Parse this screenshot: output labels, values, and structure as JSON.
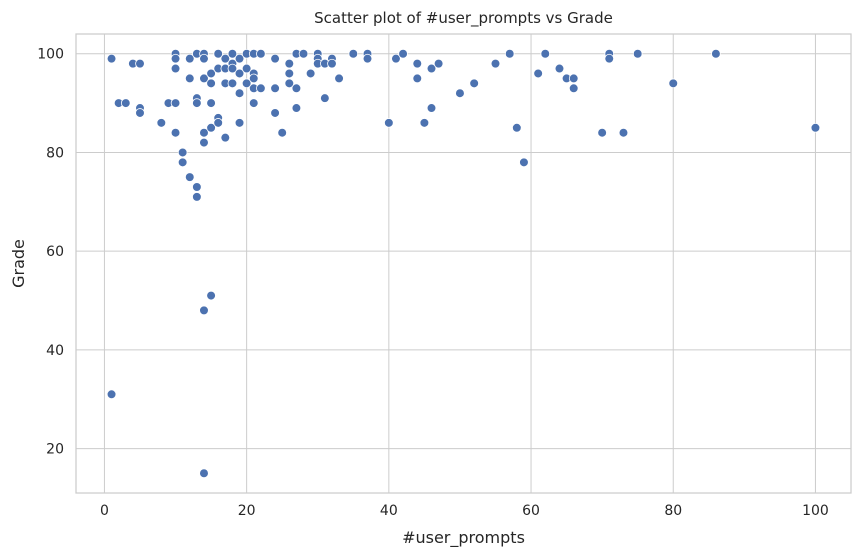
{
  "chart_data": {
    "type": "scatter",
    "title": "Scatter plot of #user_prompts vs Grade",
    "xlabel": "#user_prompts",
    "ylabel": "Grade",
    "xlim": [
      -4,
      105
    ],
    "ylim": [
      11,
      104
    ],
    "xticks": [
      0,
      20,
      40,
      60,
      80,
      100
    ],
    "yticks": [
      20,
      40,
      60,
      80,
      100
    ],
    "grid": true,
    "marker_color": "#4c72b0",
    "points": [
      {
        "x": 1,
        "y": 99
      },
      {
        "x": 1,
        "y": 31
      },
      {
        "x": 2,
        "y": 90
      },
      {
        "x": 3,
        "y": 90
      },
      {
        "x": 4,
        "y": 98
      },
      {
        "x": 5,
        "y": 98
      },
      {
        "x": 5,
        "y": 89
      },
      {
        "x": 5,
        "y": 88
      },
      {
        "x": 8,
        "y": 86
      },
      {
        "x": 9,
        "y": 90
      },
      {
        "x": 10,
        "y": 100
      },
      {
        "x": 10,
        "y": 99
      },
      {
        "x": 10,
        "y": 97
      },
      {
        "x": 10,
        "y": 90
      },
      {
        "x": 10,
        "y": 84
      },
      {
        "x": 11,
        "y": 80
      },
      {
        "x": 11,
        "y": 78
      },
      {
        "x": 12,
        "y": 99
      },
      {
        "x": 12,
        "y": 95
      },
      {
        "x": 12,
        "y": 75
      },
      {
        "x": 13,
        "y": 100
      },
      {
        "x": 13,
        "y": 91
      },
      {
        "x": 13,
        "y": 90
      },
      {
        "x": 13,
        "y": 73
      },
      {
        "x": 13,
        "y": 71
      },
      {
        "x": 14,
        "y": 100
      },
      {
        "x": 14,
        "y": 99
      },
      {
        "x": 14,
        "y": 95
      },
      {
        "x": 14,
        "y": 84
      },
      {
        "x": 14,
        "y": 82
      },
      {
        "x": 14,
        "y": 48
      },
      {
        "x": 14,
        "y": 15
      },
      {
        "x": 15,
        "y": 96
      },
      {
        "x": 15,
        "y": 94
      },
      {
        "x": 15,
        "y": 90
      },
      {
        "x": 15,
        "y": 85
      },
      {
        "x": 15,
        "y": 51
      },
      {
        "x": 16,
        "y": 100
      },
      {
        "x": 16,
        "y": 97
      },
      {
        "x": 16,
        "y": 87
      },
      {
        "x": 16,
        "y": 86
      },
      {
        "x": 17,
        "y": 99
      },
      {
        "x": 17,
        "y": 97
      },
      {
        "x": 17,
        "y": 94
      },
      {
        "x": 17,
        "y": 83
      },
      {
        "x": 18,
        "y": 100
      },
      {
        "x": 18,
        "y": 98
      },
      {
        "x": 18,
        "y": 97
      },
      {
        "x": 18,
        "y": 94
      },
      {
        "x": 19,
        "y": 99
      },
      {
        "x": 19,
        "y": 96
      },
      {
        "x": 19,
        "y": 92
      },
      {
        "x": 19,
        "y": 86
      },
      {
        "x": 20,
        "y": 100
      },
      {
        "x": 20,
        "y": 97
      },
      {
        "x": 20,
        "y": 94
      },
      {
        "x": 21,
        "y": 100
      },
      {
        "x": 21,
        "y": 96
      },
      {
        "x": 21,
        "y": 95
      },
      {
        "x": 21,
        "y": 93
      },
      {
        "x": 21,
        "y": 90
      },
      {
        "x": 22,
        "y": 100
      },
      {
        "x": 22,
        "y": 93
      },
      {
        "x": 24,
        "y": 99
      },
      {
        "x": 24,
        "y": 93
      },
      {
        "x": 24,
        "y": 88
      },
      {
        "x": 25,
        "y": 84
      },
      {
        "x": 26,
        "y": 98
      },
      {
        "x": 26,
        "y": 96
      },
      {
        "x": 26,
        "y": 94
      },
      {
        "x": 27,
        "y": 100
      },
      {
        "x": 27,
        "y": 93
      },
      {
        "x": 27,
        "y": 89
      },
      {
        "x": 28,
        "y": 100
      },
      {
        "x": 29,
        "y": 96
      },
      {
        "x": 30,
        "y": 100
      },
      {
        "x": 30,
        "y": 99
      },
      {
        "x": 30,
        "y": 98
      },
      {
        "x": 31,
        "y": 98
      },
      {
        "x": 31,
        "y": 91
      },
      {
        "x": 32,
        "y": 99
      },
      {
        "x": 32,
        "y": 98
      },
      {
        "x": 33,
        "y": 95
      },
      {
        "x": 35,
        "y": 100
      },
      {
        "x": 37,
        "y": 100
      },
      {
        "x": 37,
        "y": 99
      },
      {
        "x": 40,
        "y": 86
      },
      {
        "x": 41,
        "y": 99
      },
      {
        "x": 42,
        "y": 100
      },
      {
        "x": 44,
        "y": 98
      },
      {
        "x": 44,
        "y": 95
      },
      {
        "x": 45,
        "y": 86
      },
      {
        "x": 46,
        "y": 97
      },
      {
        "x": 46,
        "y": 89
      },
      {
        "x": 47,
        "y": 98
      },
      {
        "x": 50,
        "y": 92
      },
      {
        "x": 52,
        "y": 94
      },
      {
        "x": 55,
        "y": 98
      },
      {
        "x": 57,
        "y": 100
      },
      {
        "x": 58,
        "y": 85
      },
      {
        "x": 59,
        "y": 78
      },
      {
        "x": 61,
        "y": 96
      },
      {
        "x": 62,
        "y": 100
      },
      {
        "x": 64,
        "y": 97
      },
      {
        "x": 65,
        "y": 95
      },
      {
        "x": 66,
        "y": 95
      },
      {
        "x": 66,
        "y": 93
      },
      {
        "x": 70,
        "y": 84
      },
      {
        "x": 71,
        "y": 100
      },
      {
        "x": 71,
        "y": 99
      },
      {
        "x": 73,
        "y": 84
      },
      {
        "x": 75,
        "y": 100
      },
      {
        "x": 80,
        "y": 94
      },
      {
        "x": 86,
        "y": 100
      },
      {
        "x": 100,
        "y": 85
      }
    ]
  }
}
